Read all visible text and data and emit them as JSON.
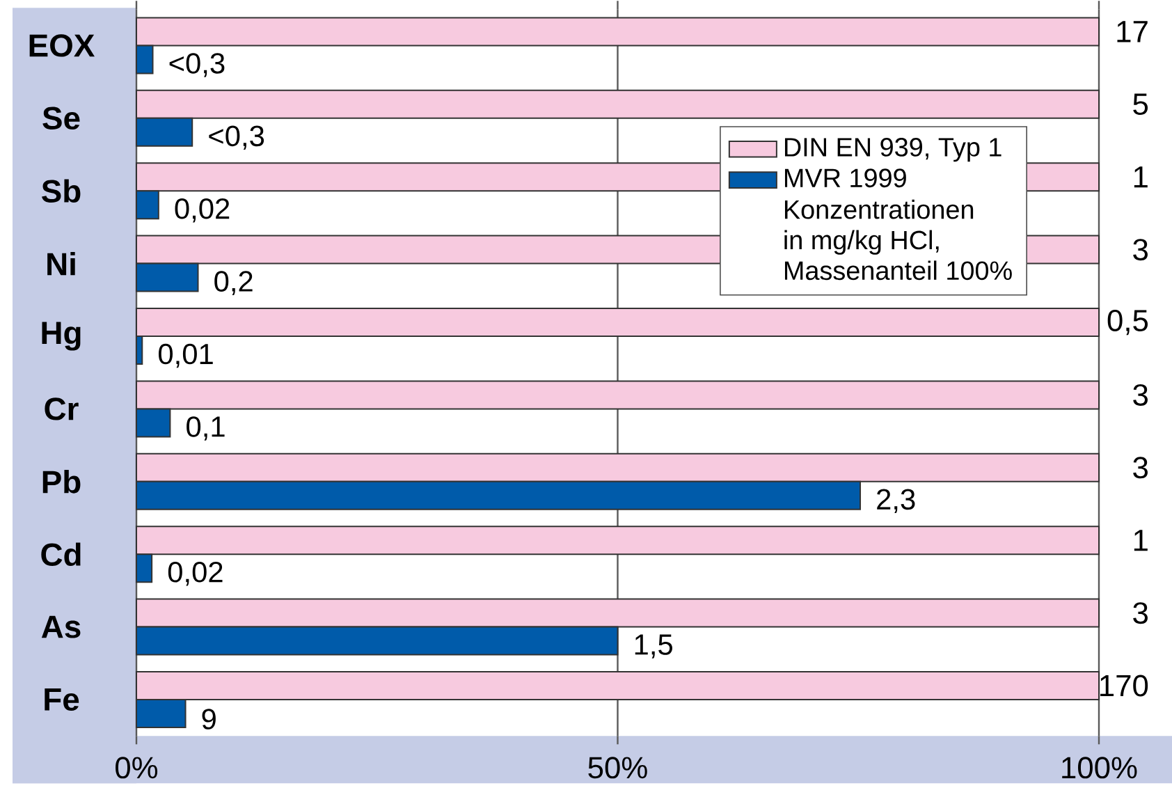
{
  "chart_data": {
    "type": "bar",
    "orientation": "horizontal",
    "categories": [
      "EOX",
      "Se",
      "Sb",
      "Ni",
      "Hg",
      "Cr",
      "Pb",
      "Cd",
      "As",
      "Fe"
    ],
    "series": [
      {
        "name": "DIN EN 939, Typ 1",
        "color": "#f7cadf",
        "values": [
          100,
          100,
          100,
          100,
          100,
          100,
          100,
          100,
          100,
          100
        ]
      },
      {
        "name": "MVR 1999",
        "color": "#005baa",
        "values": [
          1.7,
          5.8,
          2.3,
          6.4,
          0.6,
          3.5,
          75.2,
          1.6,
          50,
          5.1
        ]
      }
    ],
    "xlim": [
      0,
      100
    ],
    "xticks": [
      {
        "value": 0,
        "label": "0%"
      },
      {
        "value": 50,
        "label": "50%"
      },
      {
        "value": 100,
        "label": "100%"
      }
    ],
    "grid": "x",
    "legend": "top right",
    "annotations": [
      "Konzentrationen",
      "in mg/kg HCl,",
      "Massenanteil 100%",
      {
        "text": "17",
        "x": 100,
        "y": "EOX"
      },
      {
        "text": "<0,3",
        "x": 1.7,
        "y": "EOX"
      },
      {
        "text": "5",
        "x": 100,
        "y": "Se"
      },
      {
        "text": "<0,3",
        "x": 5.8,
        "y": "Se"
      },
      {
        "text": "1",
        "x": 100,
        "y": "Sb"
      },
      {
        "text": "0,02",
        "x": 2.3,
        "y": "Sb"
      },
      {
        "text": "3",
        "x": 100,
        "y": "Ni"
      },
      {
        "text": "0,2",
        "x": 6.4,
        "y": "Ni"
      },
      {
        "text": "0,5",
        "x": 100,
        "y": "Hg"
      },
      {
        "text": "0,01",
        "x": 0.6,
        "y": "Hg"
      },
      {
        "text": "3",
        "x": 100,
        "y": "Cr"
      },
      {
        "text": "0,1",
        "x": 3.5,
        "y": "Cr"
      },
      {
        "text": "3",
        "x": 100,
        "y": "Pb"
      },
      {
        "text": "2,3",
        "x": 75.2,
        "y": "Pb"
      },
      {
        "text": "1",
        "x": 100,
        "y": "Cd"
      },
      {
        "text": "0,02",
        "x": 1.6,
        "y": "Cd"
      },
      {
        "text": "3",
        "x": 100,
        "y": "As"
      },
      {
        "text": "1,5",
        "x": 50,
        "y": "As"
      },
      {
        "text": "170",
        "x": 100,
        "y": "Fe"
      },
      {
        "text": "9",
        "x": 5.1,
        "y": "Fe"
      }
    ]
  }
}
